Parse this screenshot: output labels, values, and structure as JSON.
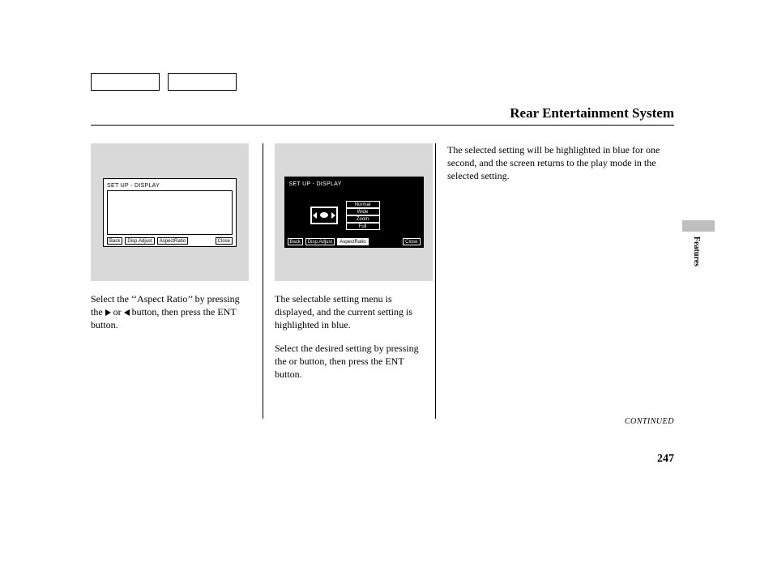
{
  "header": {
    "title": "Rear Entertainment System"
  },
  "sideTab": {
    "label": "Features"
  },
  "footer": {
    "continued": "CONTINUED",
    "pageNumber": "247"
  },
  "fig1": {
    "bg": "#d9d9d9",
    "screenTitle": "SET UP - DISPLAY",
    "buttons": {
      "back": "Back",
      "dispAdjust": "Disp.Adjust",
      "aspect": "AspectRatio",
      "close": "Close"
    }
  },
  "fig2": {
    "bg": "#d9d9d9",
    "screenTitle": "SET UP - DISPLAY",
    "menu": [
      "Normal",
      "Wide",
      "Zoom",
      "Full"
    ],
    "buttons": {
      "back": "Back",
      "dispAdjust": "Disp.Adjust",
      "aspect": "AspectRatio",
      "close": "Close"
    }
  },
  "col1": {
    "p1a": "Select the ‘‘Aspect Ratio’’ by pressing the ",
    "p1b": " or ",
    "p1c": " button, then press the ENT button."
  },
  "col2": {
    "p1": "The selectable setting menu is displayed, and the current setting is highlighted in blue.",
    "p2a": "Select the desired setting by pressing the ",
    "p2b": " or ",
    "p2c": " button, then press the ENT button."
  },
  "col3": {
    "p1": "The selected setting will be highlighted in blue for one second, and the screen returns to the play mode in the selected setting."
  }
}
